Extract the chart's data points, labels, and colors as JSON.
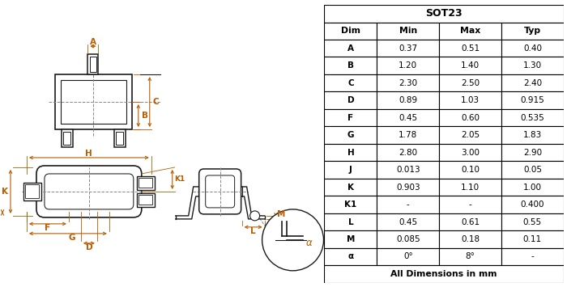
{
  "title": "SOT23",
  "headers": [
    "Dim",
    "Min",
    "Max",
    "Typ"
  ],
  "rows": [
    [
      "A",
      "0.37",
      "0.51",
      "0.40"
    ],
    [
      "B",
      "1.20",
      "1.40",
      "1.30"
    ],
    [
      "C",
      "2.30",
      "2.50",
      "2.40"
    ],
    [
      "D",
      "0.89",
      "1.03",
      "0.915"
    ],
    [
      "F",
      "0.45",
      "0.60",
      "0.535"
    ],
    [
      "G",
      "1.78",
      "2.05",
      "1.83"
    ],
    [
      "H",
      "2.80",
      "3.00",
      "2.90"
    ],
    [
      "J",
      "0.013",
      "0.10",
      "0.05"
    ],
    [
      "K",
      "0.903",
      "1.10",
      "1.00"
    ],
    [
      "K1",
      "-",
      "-",
      "0.400"
    ],
    [
      "L",
      "0.45",
      "0.61",
      "0.55"
    ],
    [
      "M",
      "0.085",
      "0.18",
      "0.11"
    ],
    [
      "α",
      "0°",
      "8°",
      "-"
    ]
  ],
  "footer": "All Dimensions in mm",
  "bg_color": "#ffffff",
  "line_color": "#1a1a1a",
  "dim_color": "#b85c00",
  "gray_color": "#888888"
}
